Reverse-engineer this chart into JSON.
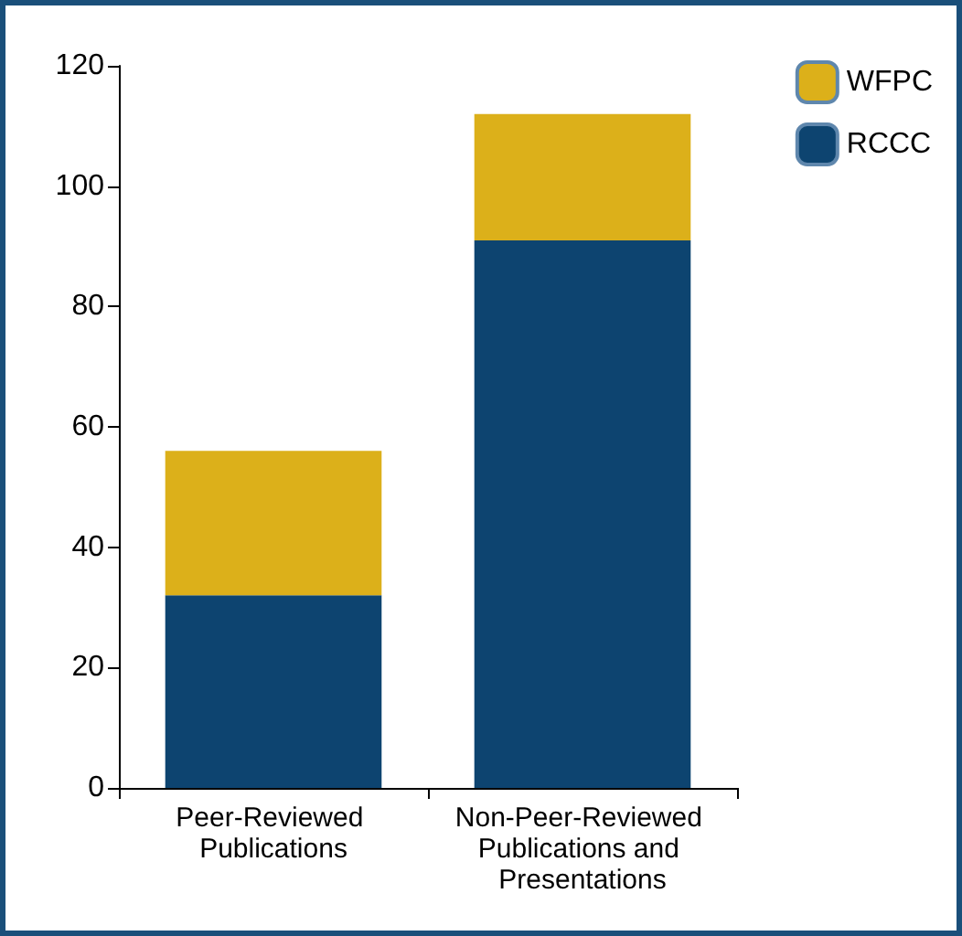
{
  "chart_data": {
    "type": "bar",
    "stacked": true,
    "categories": [
      "Peer-Reviewed Publications",
      "Non-Peer-Reviewed Publications and Presentations"
    ],
    "series": [
      {
        "name": "RCCC",
        "color": "#0d4470",
        "values": [
          32,
          91
        ]
      },
      {
        "name": "WFPC",
        "color": "#dcb01a",
        "values": [
          24,
          21
        ]
      }
    ],
    "ylim": [
      0,
      120
    ],
    "yticks": [
      0,
      20,
      40,
      60,
      80,
      100,
      120
    ],
    "grid": false,
    "legend": "top right"
  }
}
